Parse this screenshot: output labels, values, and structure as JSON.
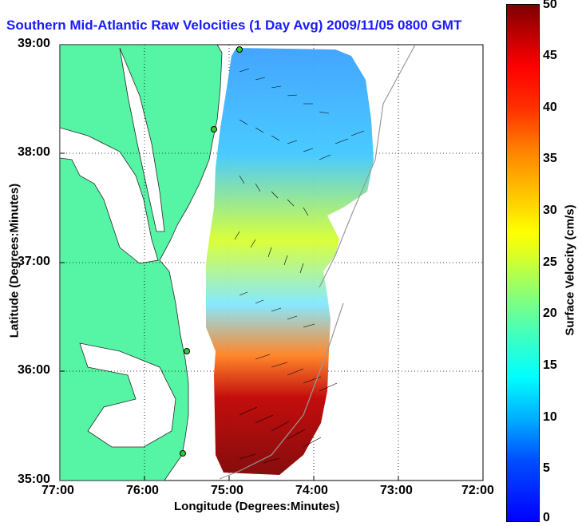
{
  "title": "Southern Mid-Atlantic Raw Velocities (1 Day Avg) 2009/11/05 0800 GMT",
  "map": {
    "xlabel": "Longitude (Degrees:Minutes)",
    "ylabel": "Latitude (Degrees:Minutes)",
    "x_ticks": [
      "77:00",
      "76:00",
      "75:00",
      "74:00",
      "73:00",
      "72:00"
    ],
    "y_ticks": [
      "39:00",
      "38:00",
      "37:00",
      "36:00",
      "35:00"
    ],
    "lon_range": [
      -77,
      -72
    ],
    "lat_range": [
      35,
      39
    ],
    "land_color": "#55f5a5",
    "grid": "dotted"
  },
  "colorbar": {
    "label": "Surface Velocity (cm/s)",
    "ticks": [
      "50",
      "45",
      "40",
      "35",
      "30",
      "25",
      "20",
      "15",
      "10",
      "5",
      "0"
    ],
    "range": [
      0,
      50
    ],
    "colormap": "jet"
  }
}
